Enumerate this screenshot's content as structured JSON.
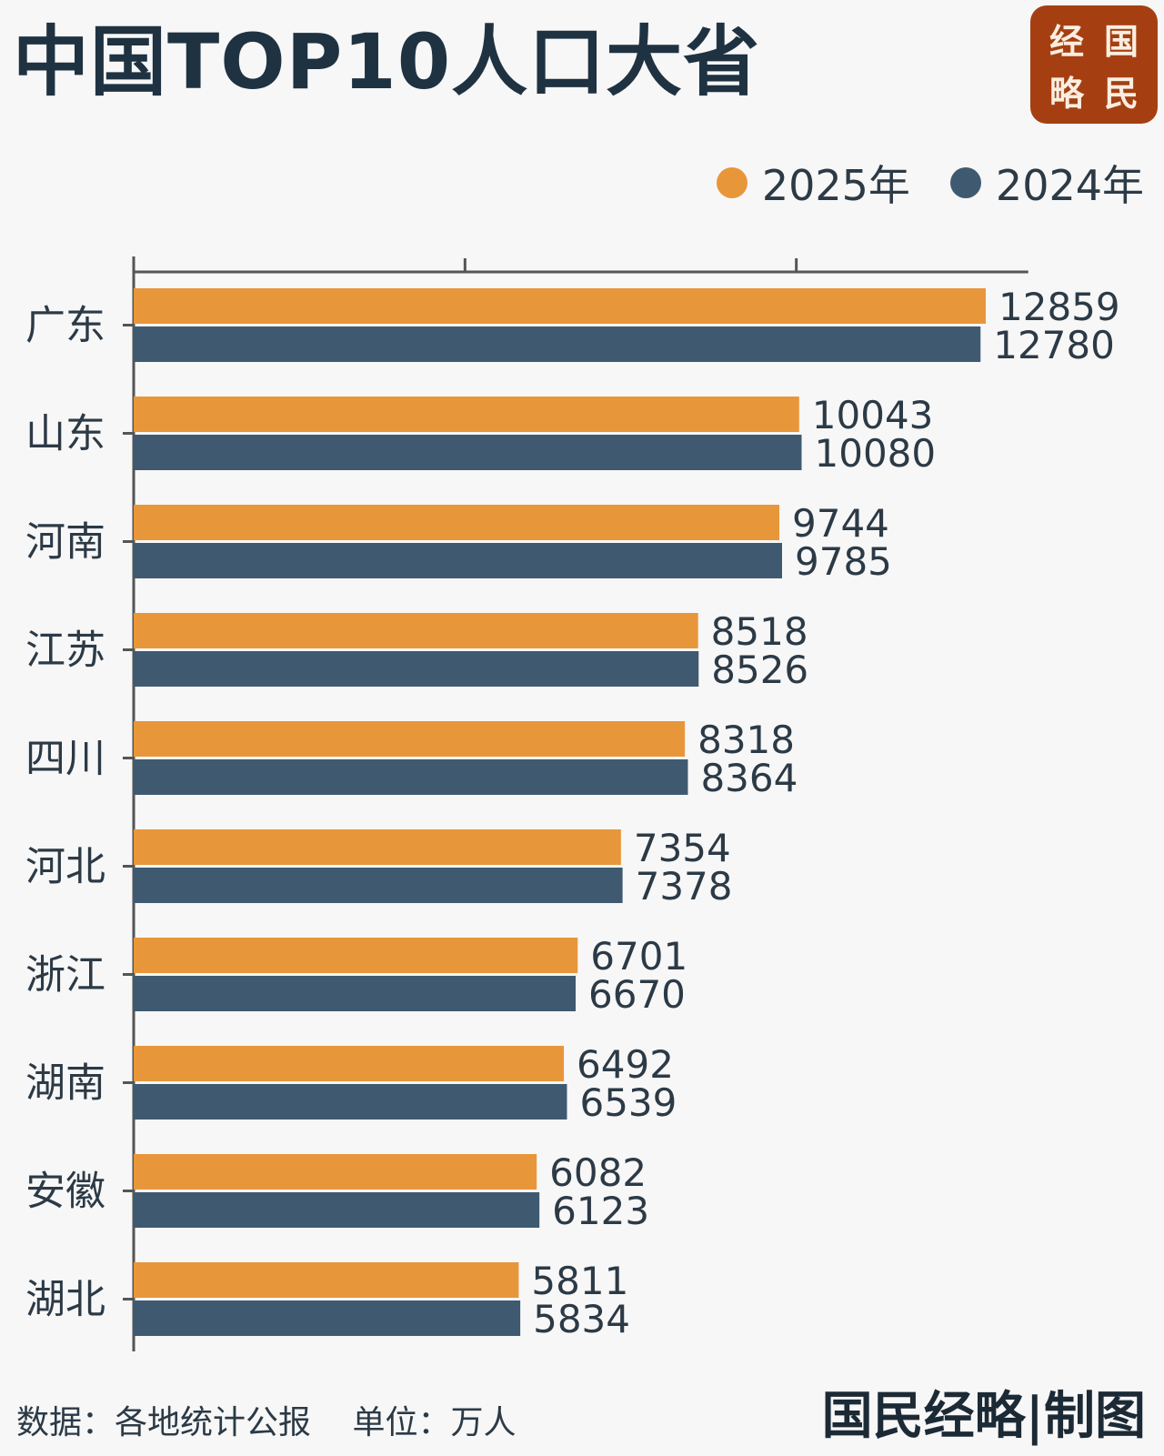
{
  "title": "中国TOP10人口大省",
  "logo": {
    "chars": [
      "经",
      "国",
      "略",
      "民"
    ],
    "color": "#a53f12"
  },
  "footer": {
    "source": "数据：各地统计公报",
    "unit": "单位：万人",
    "credit": "国民经略|制图"
  },
  "chart_data": {
    "type": "bar",
    "orientation": "horizontal",
    "title": "中国TOP10人口大省",
    "categories": [
      "广东",
      "山东",
      "河南",
      "江苏",
      "四川",
      "河北",
      "浙江",
      "湖南",
      "安徽",
      "湖北"
    ],
    "series": [
      {
        "name": "2025年",
        "color": "#e8963a",
        "values": [
          12859,
          10043,
          9744,
          8518,
          8318,
          7354,
          6701,
          6492,
          6082,
          5811
        ]
      },
      {
        "name": "2024年",
        "color": "#3f5a70",
        "values": [
          12780,
          10080,
          9785,
          8526,
          8364,
          7378,
          6670,
          6539,
          6123,
          5834
        ]
      }
    ],
    "xlim": [
      0,
      13500
    ],
    "x_ticks": [
      0,
      5000,
      10000
    ],
    "x_tick_labels_shown": false,
    "grid": false,
    "legend_position": "top-right",
    "data_labels": true
  }
}
